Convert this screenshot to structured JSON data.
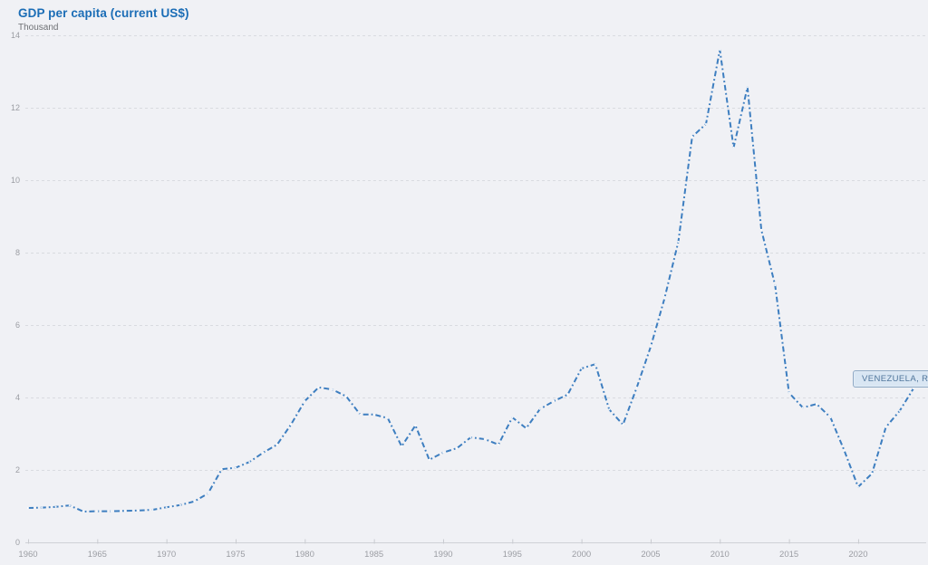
{
  "header": {
    "title": "GDP per capita (current US$)",
    "subtitle": "Thousand"
  },
  "series_label": {
    "text": "VENEZUELA, RB"
  },
  "colors": {
    "title_text": "#1b6db6",
    "subtitle_text": "#6f7175",
    "line": "#3d7ec0",
    "marker": "#ffffff",
    "gridline": "#d9dbe0",
    "axis_line": "#cfd1d6",
    "tick_mark": "#c9cbd0",
    "tick_text": "#9b9da3",
    "background": "#f0f1f5",
    "chip_bg": "#d9e6f3",
    "chip_border": "#8fa9c4",
    "chip_text": "#4f759b"
  },
  "chart_data": {
    "type": "line",
    "title": "GDP per capita (current US$)",
    "unit": "Thousand",
    "xlabel": "",
    "ylabel": "Thousand (current US$)",
    "xlim": [
      1960,
      2024
    ],
    "ylim": [
      0,
      14
    ],
    "grid": "horizontal-dashed",
    "legend_position": "end-of-line-chip-right",
    "line_style": "dash-dot",
    "x_ticks": [
      1960,
      1965,
      1970,
      1975,
      1980,
      1985,
      1990,
      1995,
      2000,
      2005,
      2010,
      2015,
      2020
    ],
    "y_ticks": [
      0,
      2,
      4,
      6,
      8,
      10,
      12,
      14
    ],
    "series": [
      {
        "name": "VENEZUELA, RB",
        "x": [
          1960,
          1961,
          1962,
          1963,
          1964,
          1965,
          1966,
          1967,
          1968,
          1969,
          1970,
          1971,
          1972,
          1973,
          1974,
          1975,
          1976,
          1977,
          1978,
          1979,
          1980,
          1981,
          1982,
          1983,
          1984,
          1985,
          1986,
          1987,
          1988,
          1989,
          1990,
          1991,
          1992,
          1993,
          1994,
          1995,
          1996,
          1997,
          1998,
          1999,
          2000,
          2001,
          2002,
          2003,
          2004,
          2005,
          2006,
          2007,
          2008,
          2009,
          2010,
          2011,
          2012,
          2013,
          2014,
          2015,
          2016,
          2017,
          2018,
          2019,
          2020,
          2021,
          2022,
          2023,
          2024
        ],
        "values": [
          0.95,
          0.96,
          0.98,
          1.02,
          0.85,
          0.86,
          0.86,
          0.87,
          0.88,
          0.9,
          0.97,
          1.03,
          1.13,
          1.35,
          2.02,
          2.06,
          2.22,
          2.48,
          2.7,
          3.25,
          3.9,
          4.28,
          4.22,
          4.03,
          3.53,
          3.53,
          3.43,
          2.65,
          3.23,
          2.28,
          2.48,
          2.6,
          2.9,
          2.85,
          2.7,
          3.45,
          3.15,
          3.68,
          3.9,
          4.08,
          4.8,
          4.92,
          3.67,
          3.25,
          4.28,
          5.4,
          6.73,
          8.3,
          11.2,
          11.55,
          13.6,
          10.9,
          12.57,
          8.63,
          7.1,
          4.13,
          3.72,
          3.82,
          3.45,
          2.53,
          1.53,
          1.9,
          3.18,
          3.63,
          4.25
        ]
      }
    ]
  }
}
